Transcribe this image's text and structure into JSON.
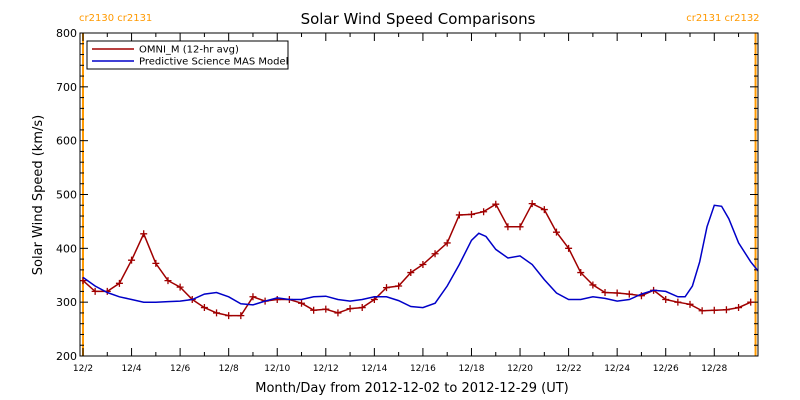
{
  "chart_data": {
    "type": "line",
    "title": "Solar Wind Speed Comparisons",
    "xlabel": "Month/Day from 2012-12-02 to 2012-12-29 (UT)",
    "ylabel": "Solar Wind Speed (km/s)",
    "xlim": [
      0,
      27.8
    ],
    "ylim": [
      200,
      800
    ],
    "yticks": [
      200,
      300,
      400,
      500,
      600,
      700,
      800
    ],
    "xticks": [
      {
        "x": 0,
        "label": "12/2"
      },
      {
        "x": 2,
        "label": "12/4"
      },
      {
        "x": 4,
        "label": "12/6"
      },
      {
        "x": 6,
        "label": "12/8"
      },
      {
        "x": 8,
        "label": "12/10"
      },
      {
        "x": 10,
        "label": "12/12"
      },
      {
        "x": 12,
        "label": "12/14"
      },
      {
        "x": 14,
        "label": "12/16"
      },
      {
        "x": 16,
        "label": "12/18"
      },
      {
        "x": 18,
        "label": "12/20"
      },
      {
        "x": 20,
        "label": "12/22"
      },
      {
        "x": 22,
        "label": "12/24"
      },
      {
        "x": 24,
        "label": "12/26"
      },
      {
        "x": 26,
        "label": "12/28"
      }
    ],
    "carrington_markers": [
      {
        "x": 0,
        "labels": [
          "cr2130",
          "cr2131"
        ]
      },
      {
        "x": 27.7,
        "labels": [
          "cr2131",
          "cr2132"
        ]
      }
    ],
    "legend": {
      "placement": "top-left"
    },
    "series": [
      {
        "name": "OMNI_M (12-hr avg)",
        "color": "#a00000",
        "markers": true,
        "x": [
          0,
          0.5,
          1,
          1.5,
          2,
          2.5,
          3,
          3.5,
          4,
          4.5,
          5,
          5.5,
          6,
          6.5,
          7,
          7.5,
          8,
          8.5,
          9,
          9.5,
          10,
          10.5,
          11,
          11.5,
          12,
          12.5,
          13,
          13.5,
          14,
          14.5,
          15,
          15.5,
          16,
          16.5,
          17,
          17.5,
          18,
          18.5,
          19,
          19.5,
          20,
          20.5,
          21,
          21.5,
          22,
          22.5,
          23,
          23.5,
          24,
          24.5,
          25,
          25.5,
          26,
          26.5,
          27,
          27.5
        ],
        "values": [
          340,
          320,
          320,
          335,
          378,
          427,
          372,
          340,
          328,
          305,
          290,
          280,
          275,
          275,
          310,
          302,
          305,
          305,
          298,
          285,
          287,
          280,
          288,
          290,
          305,
          327,
          330,
          355,
          370,
          390,
          410,
          462,
          463,
          468,
          482,
          440,
          440,
          483,
          472,
          430,
          400,
          355,
          332,
          318,
          317,
          315,
          312,
          322,
          305,
          300,
          296,
          284,
          285,
          286,
          290,
          300
        ]
      },
      {
        "name": "Predictive Science MAS Model",
        "color": "#0000c8",
        "markers": false,
        "x": [
          0,
          0.5,
          1,
          1.5,
          2,
          2.5,
          3,
          3.5,
          4,
          4.5,
          5,
          5.5,
          6,
          6.5,
          7,
          7.5,
          8,
          8.5,
          9,
          9.5,
          10,
          10.5,
          11,
          11.5,
          12,
          12.5,
          13,
          13.5,
          14,
          14.5,
          15,
          15.5,
          16,
          16.3,
          16.6,
          17,
          17.5,
          18,
          18.5,
          19,
          19.5,
          20,
          20.5,
          21,
          21.5,
          22,
          22.5,
          23,
          23.5,
          24,
          24.5,
          24.8,
          25.1,
          25.4,
          25.7,
          26,
          26.3,
          26.6,
          27,
          27.5,
          27.8
        ],
        "values": [
          346,
          330,
          318,
          310,
          305,
          300,
          300,
          301,
          302,
          305,
          315,
          318,
          310,
          297,
          295,
          302,
          308,
          305,
          305,
          310,
          311,
          305,
          302,
          305,
          310,
          310,
          303,
          292,
          290,
          298,
          330,
          370,
          415,
          428,
          422,
          398,
          382,
          386,
          370,
          342,
          317,
          305,
          305,
          310,
          307,
          302,
          305,
          315,
          322,
          320,
          310,
          310,
          330,
          375,
          440,
          480,
          478,
          455,
          410,
          375,
          358
        ]
      }
    ]
  }
}
